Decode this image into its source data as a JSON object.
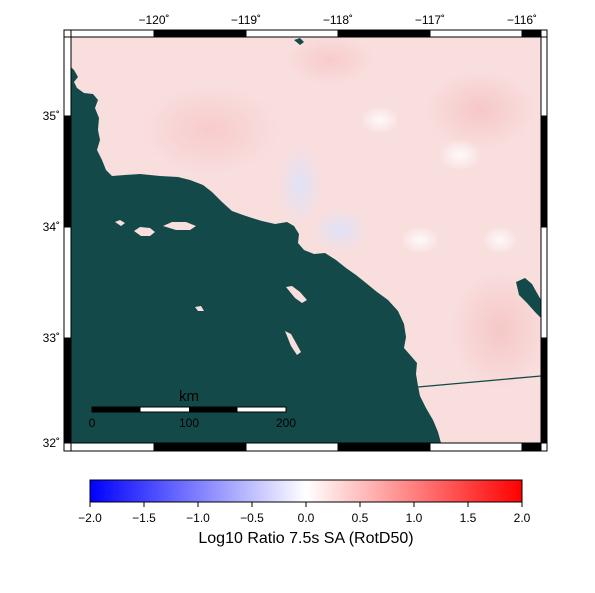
{
  "map": {
    "lon_ticks": [
      "−120˚",
      "−119˚",
      "−118˚",
      "−117˚",
      "−116˚"
    ],
    "lat_ticks": [
      "35˚",
      "34˚",
      "33˚",
      "32˚"
    ],
    "ocean_color": "#134a49",
    "land_color": "#f9dede"
  },
  "scale_bar": {
    "unit": "km",
    "labels": [
      "0",
      "100",
      "200"
    ]
  },
  "colorbar": {
    "tick_labels": [
      "−2.0",
      "−1.5",
      "−1.0",
      "−0.5",
      "0.0",
      "0.5",
      "1.0",
      "1.5",
      "2.0"
    ],
    "title": "Log10 Ratio 7.5s SA (RotD50)",
    "range": [
      -2.0,
      2.0
    ],
    "colors": {
      "min": "#0000ff",
      "mid": "#ffffff",
      "max": "#ff0000"
    }
  }
}
